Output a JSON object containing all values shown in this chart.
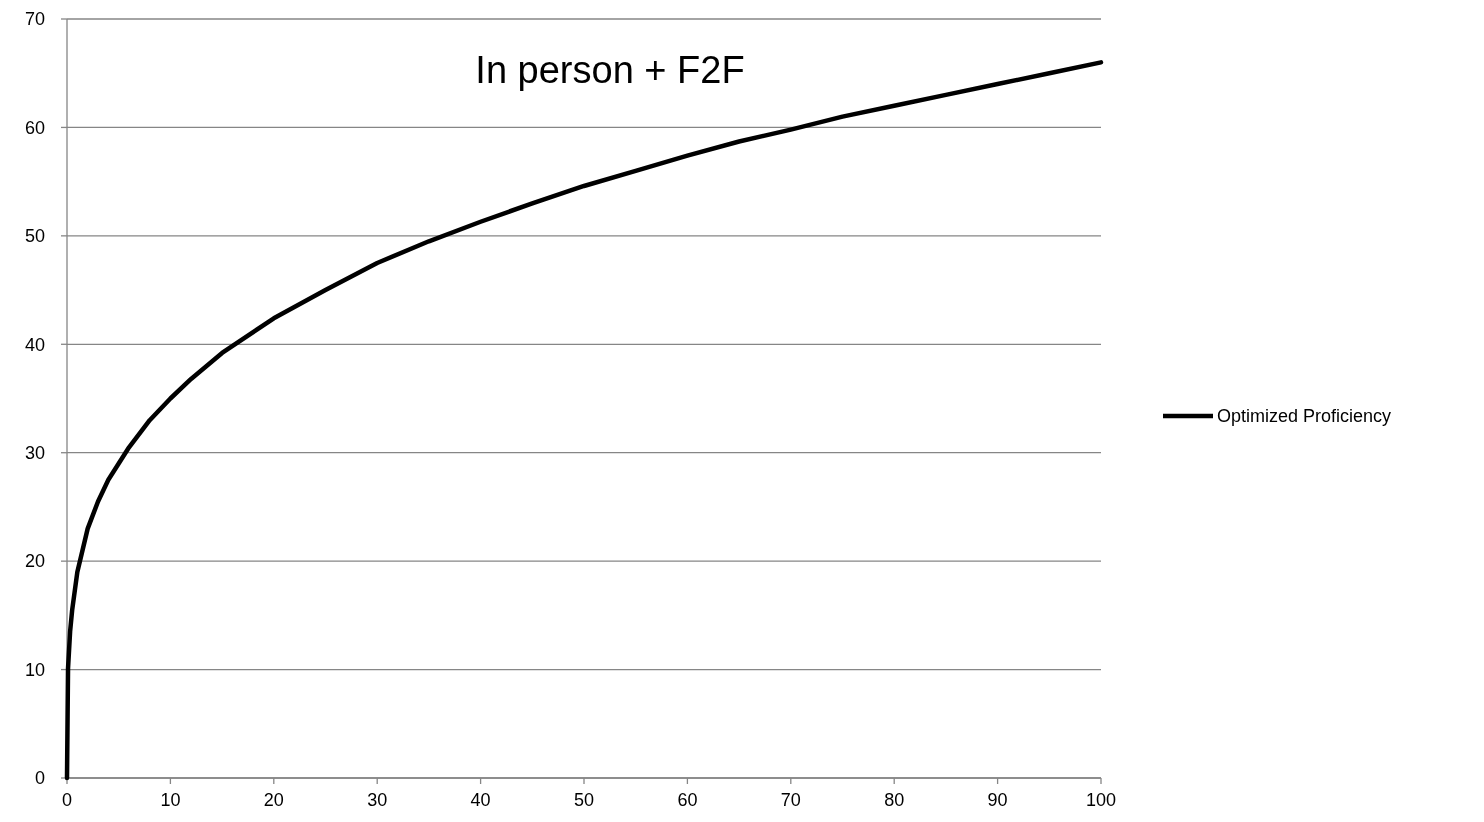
{
  "chart_data": {
    "type": "line",
    "title": "In person + F2F",
    "x": [
      0,
      0.1,
      0.3,
      0.5,
      1,
      2,
      3,
      4,
      5,
      6,
      8,
      10,
      12,
      15,
      20,
      25,
      30,
      35,
      40,
      45,
      50,
      55,
      60,
      65,
      70,
      75,
      80,
      85,
      90,
      95,
      100
    ],
    "series": [
      {
        "name": "Optimized Proficiency",
        "color": "#000000",
        "values": [
          0,
          10.1,
          13.5,
          15.5,
          19,
          23,
          25.5,
          27.5,
          29,
          30.5,
          33,
          35,
          36.8,
          39.2,
          42.4,
          45,
          47.5,
          49.5,
          51.3,
          53,
          54.6,
          56,
          57.4,
          58.7,
          59.8,
          61,
          62,
          63,
          64,
          65,
          66
        ]
      }
    ],
    "xlim": [
      0,
      100
    ],
    "xticks": [
      0,
      10,
      20,
      30,
      40,
      50,
      60,
      70,
      80,
      90,
      100
    ],
    "ylim": [
      0,
      70
    ],
    "yticks": [
      0,
      10,
      20,
      30,
      40,
      50,
      60,
      70
    ],
    "grid": "y",
    "legend": "right",
    "marker": "none",
    "line_style": "solid"
  }
}
